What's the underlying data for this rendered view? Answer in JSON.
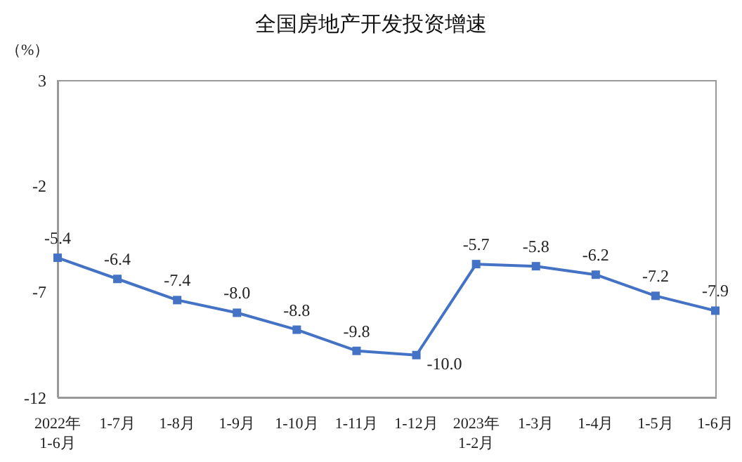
{
  "chart_data": {
    "type": "line",
    "title": "全国房地产开发投资增速",
    "ylabel": "（%）",
    "categories": [
      "2022年\n1-6月",
      "1-7月",
      "1-8月",
      "1-9月",
      "1-10月",
      "1-11月",
      "1-12月",
      "2023年\n1-2月",
      "1-3月",
      "1-4月",
      "1-5月",
      "1-6月"
    ],
    "series": [
      {
        "color": "#4472c4",
        "values": [
          -5.4,
          -6.4,
          -7.4,
          -8.0,
          -8.8,
          -9.8,
          -10.0,
          -5.7,
          -5.8,
          -6.2,
          -7.2,
          -7.9
        ],
        "value_labels": [
          "-5.4",
          "-6.4",
          "-7.4",
          "-8.0",
          "-8.8",
          "-9.8",
          "-10.0",
          "-5.7",
          "-5.8",
          "-6.2",
          "-7.2",
          "-7.9"
        ]
      }
    ],
    "ylim": [
      -12,
      3
    ],
    "yticks": [
      -12,
      -7,
      -2,
      3
    ],
    "grid": false,
    "marker": "square",
    "line_style": "solid"
  }
}
